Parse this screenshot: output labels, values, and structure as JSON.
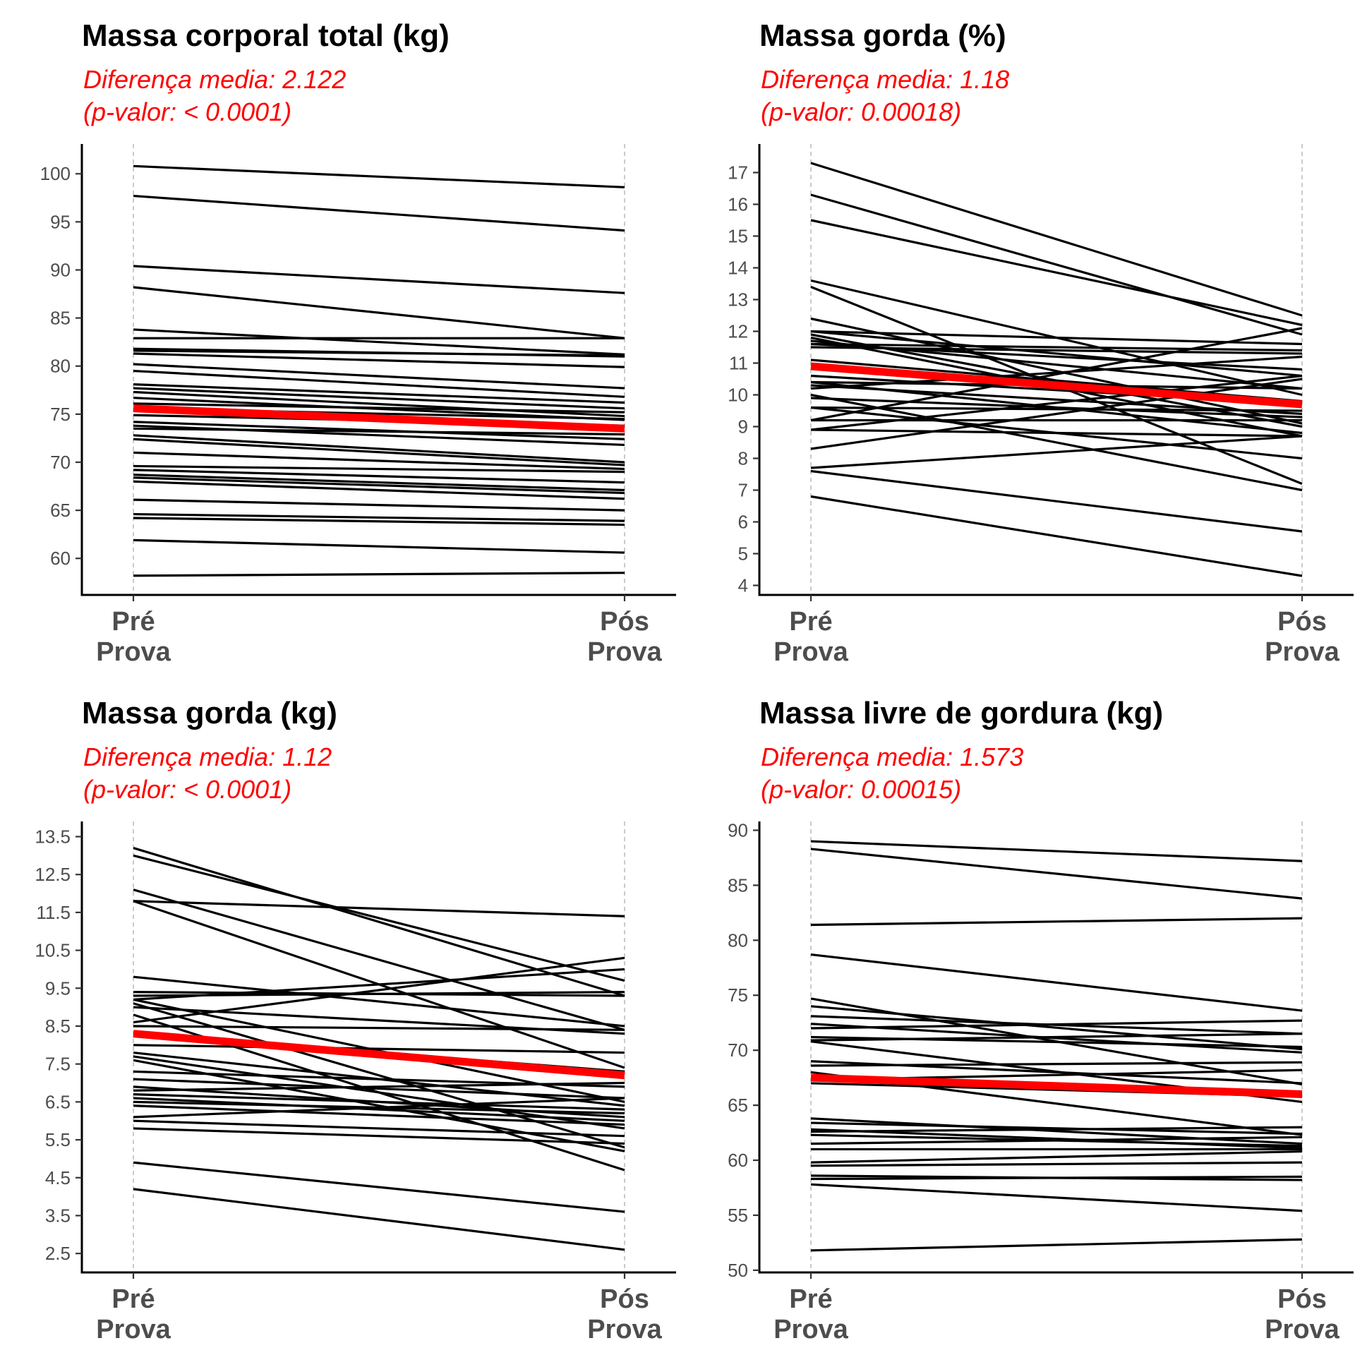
{
  "chart_data": [
    {
      "type": "line",
      "title": "Massa corporal total (kg)",
      "subtitle_line1": "Diferença media: 2.122",
      "subtitle_line2": "(p-valor: < 0.0001)",
      "categories": [
        "Pré\nProva",
        "Pós\nProva"
      ],
      "ylim": [
        56.2,
        103.1
      ],
      "yticks": [
        60,
        65,
        70,
        75,
        80,
        85,
        90,
        95,
        100
      ],
      "individuals": [
        [
          100.8,
          98.6
        ],
        [
          97.7,
          94.1
        ],
        [
          90.4,
          87.6
        ],
        [
          88.2,
          82.9
        ],
        [
          83.8,
          81.2
        ],
        [
          82.9,
          82.9
        ],
        [
          81.8,
          81.0
        ],
        [
          81.6,
          81.1
        ],
        [
          81.3,
          79.9
        ],
        [
          80.2,
          77.7
        ],
        [
          79.5,
          76.8
        ],
        [
          78.1,
          76.2
        ],
        [
          77.7,
          75.6
        ],
        [
          77.3,
          74.8
        ],
        [
          76.7,
          74.4
        ],
        [
          76.1,
          75.2
        ],
        [
          75.6,
          74.5
        ],
        [
          74.9,
          73.8
        ],
        [
          74.2,
          72.4
        ],
        [
          73.8,
          71.8
        ],
        [
          73.5,
          72.9
        ],
        [
          72.8,
          70.0
        ],
        [
          72.4,
          69.7
        ],
        [
          71.0,
          69.3
        ],
        [
          69.6,
          69.0
        ],
        [
          69.2,
          67.9
        ],
        [
          68.7,
          67.1
        ],
        [
          68.4,
          66.8
        ],
        [
          68.0,
          66.2
        ],
        [
          66.1,
          65.0
        ],
        [
          64.6,
          63.9
        ],
        [
          64.2,
          63.5
        ],
        [
          61.9,
          60.6
        ],
        [
          58.2,
          58.5
        ]
      ],
      "mean": [
        75.6,
        73.5
      ]
    },
    {
      "type": "line",
      "title": "Massa gorda (%)",
      "subtitle_line1": "Diferença media: 1.18",
      "subtitle_line2": "(p-valor: 0.00018)",
      "categories": [
        "Pré\nProva",
        "Pós\nProva"
      ],
      "ylim": [
        3.7,
        17.9
      ],
      "yticks": [
        4,
        5,
        6,
        7,
        8,
        9,
        10,
        11,
        12,
        13,
        14,
        15,
        16,
        17
      ],
      "individuals": [
        [
          17.3,
          12.5
        ],
        [
          16.3,
          11.9
        ],
        [
          15.5,
          12.2
        ],
        [
          13.6,
          10.0
        ],
        [
          13.4,
          7.2
        ],
        [
          12.4,
          9.1
        ],
        [
          12.0,
          11.6
        ],
        [
          12.0,
          10.6
        ],
        [
          11.9,
          9.0
        ],
        [
          11.8,
          8.7
        ],
        [
          11.7,
          10.2
        ],
        [
          11.6,
          11.4
        ],
        [
          11.5,
          11.3
        ],
        [
          11.1,
          9.8
        ],
        [
          10.6,
          9.7
        ],
        [
          10.4,
          8.8
        ],
        [
          10.3,
          9.4
        ],
        [
          10.2,
          11.2
        ],
        [
          10.0,
          7.0
        ],
        [
          9.9,
          9.3
        ],
        [
          9.6,
          8.0
        ],
        [
          9.6,
          9.5
        ],
        [
          9.2,
          9.2
        ],
        [
          8.9,
          10.6
        ],
        [
          8.9,
          8.7
        ],
        [
          8.3,
          10.5
        ],
        [
          7.7,
          8.7
        ],
        [
          7.6,
          5.7
        ],
        [
          6.8,
          4.3
        ],
        [
          9.2,
          12.1
        ],
        [
          10.4,
          10.2
        ],
        [
          11.6,
          10.8
        ]
      ],
      "mean": [
        10.9,
        9.7
      ]
    },
    {
      "type": "line",
      "title": "Massa gorda (kg)",
      "subtitle_line1": "Diferença media: 1.12",
      "subtitle_line2": "(p-valor: < 0.0001)",
      "categories": [
        "Pré\nProva",
        "Pós\nProva"
      ],
      "ylim": [
        2.0,
        13.9
      ],
      "yticks": [
        2.5,
        3.5,
        4.5,
        5.5,
        6.5,
        7.5,
        8.5,
        9.5,
        10.5,
        11.5,
        12.5,
        13.5
      ],
      "individuals": [
        [
          13.2,
          9.3
        ],
        [
          13.0,
          9.7
        ],
        [
          12.1,
          8.4
        ],
        [
          11.8,
          11.4
        ],
        [
          11.8,
          7.4
        ],
        [
          9.8,
          8.5
        ],
        [
          9.4,
          9.3
        ],
        [
          9.3,
          9.4
        ],
        [
          9.2,
          10.0
        ],
        [
          9.2,
          6.5
        ],
        [
          9.1,
          5.3
        ],
        [
          9.0,
          8.3
        ],
        [
          8.6,
          10.3
        ],
        [
          8.5,
          8.4
        ],
        [
          8.3,
          7.3
        ],
        [
          8.0,
          7.8
        ],
        [
          7.8,
          6.4
        ],
        [
          7.7,
          5.8
        ],
        [
          7.6,
          5.2
        ],
        [
          7.1,
          6.6
        ],
        [
          6.9,
          6.1
        ],
        [
          6.8,
          7.0
        ],
        [
          6.7,
          6.3
        ],
        [
          6.6,
          6.0
        ],
        [
          6.5,
          6.2
        ],
        [
          6.4,
          5.9
        ],
        [
          6.1,
          6.6
        ],
        [
          6.0,
          5.6
        ],
        [
          5.8,
          5.4
        ],
        [
          4.9,
          3.6
        ],
        [
          4.2,
          2.6
        ],
        [
          8.8,
          4.7
        ],
        [
          7.3,
          6.9
        ]
      ],
      "mean": [
        8.3,
        7.2
      ]
    },
    {
      "type": "line",
      "title": "Massa livre de gordura (kg)",
      "subtitle_line1": "Diferença media: 1.573",
      "subtitle_line2": "(p-valor: 0.00015)",
      "categories": [
        "Pré\nProva",
        "Pós\nProva"
      ],
      "ylim": [
        49.8,
        90.8
      ],
      "yticks": [
        50,
        55,
        60,
        65,
        70,
        75,
        80,
        85,
        90
      ],
      "individuals": [
        [
          89.0,
          87.2
        ],
        [
          88.3,
          83.8
        ],
        [
          81.4,
          82.0
        ],
        [
          78.7,
          73.6
        ],
        [
          74.7,
          66.9
        ],
        [
          74.0,
          70.1
        ],
        [
          73.1,
          71.5
        ],
        [
          72.4,
          69.8
        ],
        [
          72.0,
          72.7
        ],
        [
          71.2,
          70.3
        ],
        [
          70.9,
          71.5
        ],
        [
          69.0,
          67.0
        ],
        [
          68.6,
          68.9
        ],
        [
          67.3,
          68.2
        ],
        [
          67.0,
          65.8
        ],
        [
          63.8,
          61.5
        ],
        [
          63.4,
          62.4
        ],
        [
          62.8,
          61.1
        ],
        [
          62.6,
          63.0
        ],
        [
          62.3,
          61.3
        ],
        [
          61.5,
          62.1
        ],
        [
          61.0,
          61.0
        ],
        [
          59.8,
          60.8
        ],
        [
          59.5,
          59.8
        ],
        [
          58.6,
          58.2
        ],
        [
          58.3,
          58.5
        ],
        [
          57.8,
          55.4
        ],
        [
          51.8,
          52.8
        ],
        [
          68.0,
          62.3
        ],
        [
          70.8,
          65.3
        ]
      ],
      "mean": [
        67.5,
        66.0
      ]
    }
  ]
}
